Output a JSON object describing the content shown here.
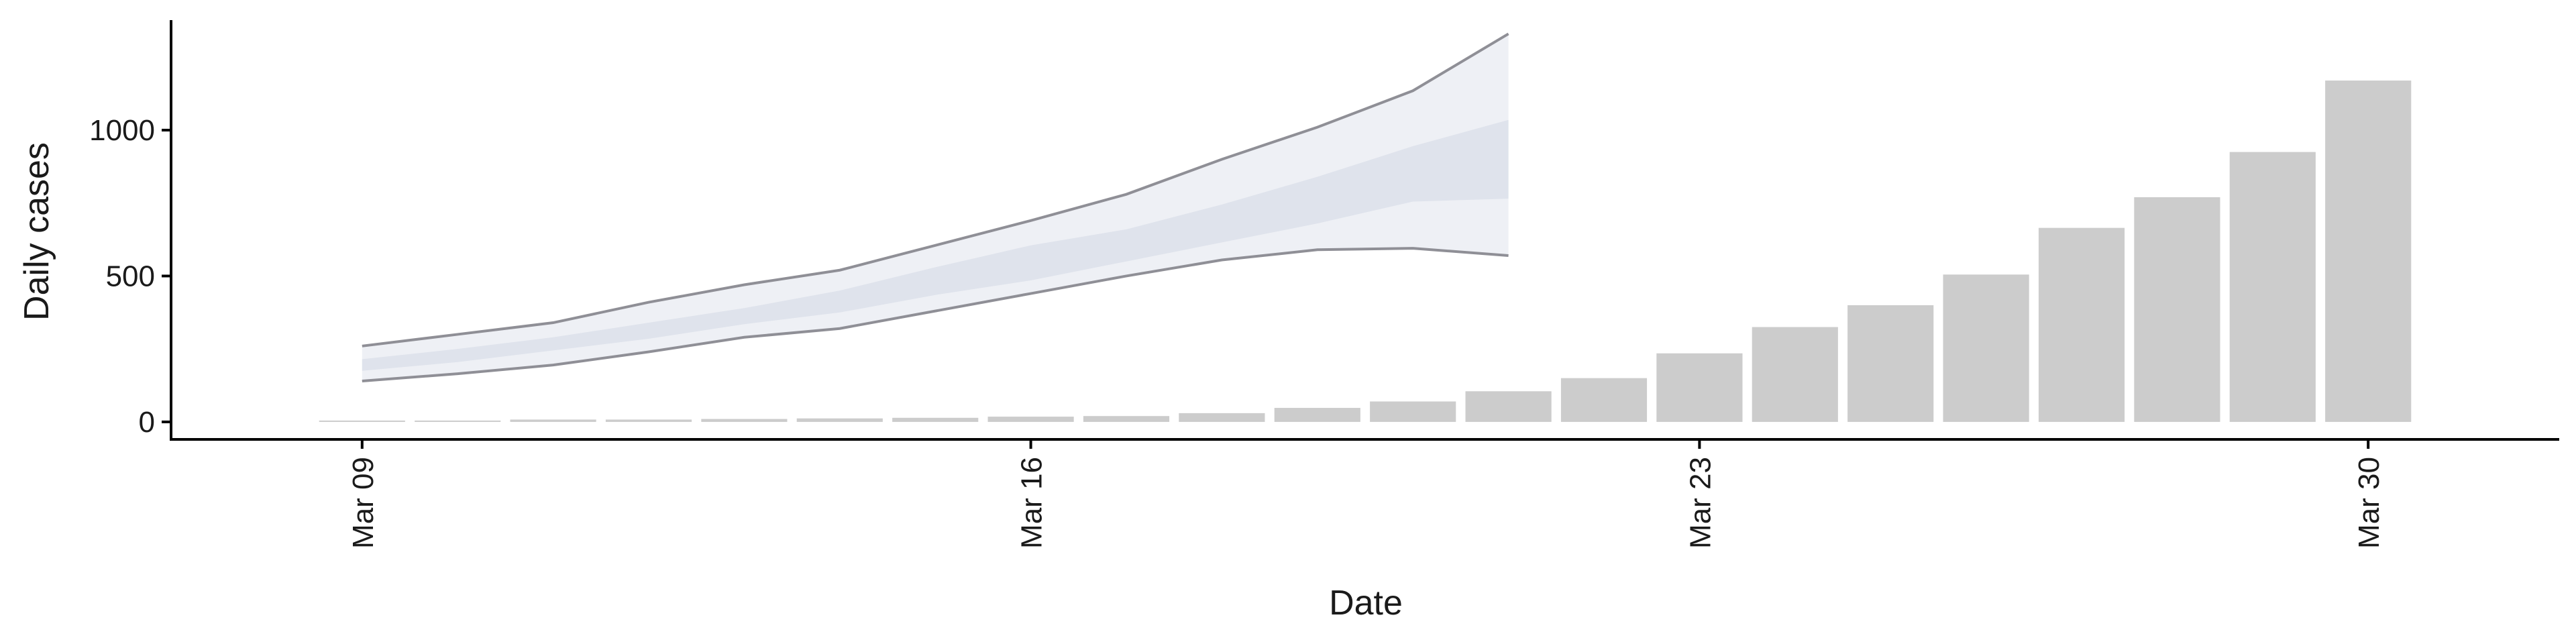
{
  "chart_data": {
    "type": "bar",
    "xlabel": "Date",
    "ylabel": "Daily cases",
    "x_ticks": [
      "2020-03-09",
      "2020-03-16",
      "2020-03-23",
      "2020-03-30"
    ],
    "x_tick_labels": [
      "Mar 09",
      "Mar 16",
      "Mar 23",
      "Mar 30"
    ],
    "y_ticks": [
      0,
      500,
      1000
    ],
    "y_tick_labels": [
      "0",
      "500",
      "1000"
    ],
    "xlim": [
      "2020-03-07",
      "2020-04-01"
    ],
    "ylim": [
      -60,
      1400
    ],
    "grid": false,
    "legend": "none",
    "bars": {
      "dates": [
        "2020-03-09",
        "2020-03-10",
        "2020-03-11",
        "2020-03-12",
        "2020-03-13",
        "2020-03-14",
        "2020-03-15",
        "2020-03-16",
        "2020-03-17",
        "2020-03-18",
        "2020-03-19",
        "2020-03-20",
        "2020-03-21",
        "2020-03-22",
        "2020-03-23",
        "2020-03-24",
        "2020-03-25",
        "2020-03-26",
        "2020-03-27",
        "2020-03-28",
        "2020-03-29",
        "2020-03-30"
      ],
      "values": [
        4,
        3,
        8,
        8,
        10,
        12,
        14,
        18,
        20,
        30,
        48,
        70,
        105,
        150,
        235,
        325,
        400,
        505,
        665,
        770,
        925,
        1170
      ],
      "color": "#cccccc"
    },
    "forecast": {
      "dates": [
        "2020-03-09",
        "2020-03-10",
        "2020-03-11",
        "2020-03-12",
        "2020-03-13",
        "2020-03-14",
        "2020-03-15",
        "2020-03-16",
        "2020-03-17",
        "2020-03-18",
        "2020-03-19",
        "2020-03-20",
        "2020-03-21"
      ],
      "outer_lower": [
        140,
        165,
        195,
        240,
        290,
        320,
        380,
        440,
        500,
        555,
        590,
        595,
        570
      ],
      "outer_upper": [
        260,
        300,
        340,
        410,
        470,
        520,
        605,
        690,
        780,
        900,
        1010,
        1135,
        1330
      ],
      "inner_lower": [
        175,
        205,
        245,
        285,
        335,
        375,
        435,
        485,
        550,
        615,
        680,
        755,
        765
      ],
      "inner_upper": [
        215,
        250,
        290,
        340,
        390,
        450,
        530,
        605,
        660,
        745,
        840,
        945,
        1035
      ],
      "outer_color": "#eef0f5",
      "inner_color": "#dfe3ec",
      "line_color": "#8f8f96"
    }
  }
}
